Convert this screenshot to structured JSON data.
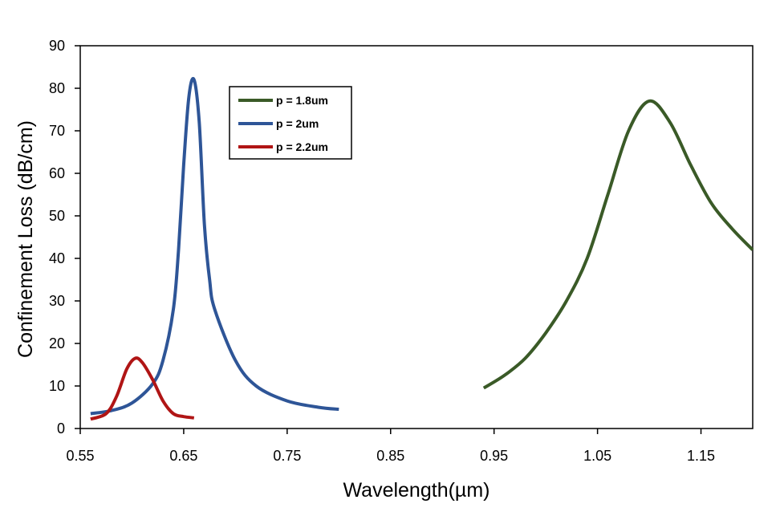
{
  "chart_data": {
    "type": "line",
    "title": "",
    "xlabel": "Wavelength(µm)",
    "ylabel": "Confinement  Loss (dB/cm)",
    "xlim": [
      0.55,
      1.2
    ],
    "ylim": [
      0,
      90
    ],
    "x_ticks": [
      "0.55",
      "0.65",
      "0.75",
      "0.85",
      "0.95",
      "1.05",
      "1.15"
    ],
    "y_ticks": [
      "0",
      "10",
      "20",
      "30",
      "40",
      "50",
      "60",
      "70",
      "80",
      "90"
    ],
    "grid": false,
    "legend_position": "top-left",
    "series": [
      {
        "name": "p = 1.8um",
        "color": "#3a5a27",
        "x": [
          0.94,
          0.96,
          0.98,
          1.0,
          1.02,
          1.04,
          1.06,
          1.08,
          1.1,
          1.12,
          1.14,
          1.16,
          1.18,
          1.2
        ],
        "y": [
          9.5,
          12.5,
          16.5,
          22.5,
          30.0,
          40.0,
          55.0,
          70.0,
          77.0,
          72.0,
          62.0,
          53.0,
          47.0,
          42.0
        ]
      },
      {
        "name": "p = 2um",
        "color": "#2e5597",
        "x": [
          0.56,
          0.58,
          0.6,
          0.62,
          0.63,
          0.64,
          0.645,
          0.65,
          0.655,
          0.66,
          0.665,
          0.67,
          0.675,
          0.68,
          0.7,
          0.72,
          0.75,
          0.78,
          0.8
        ],
        "y": [
          3.5,
          4.2,
          6.0,
          10.5,
          16.0,
          28.0,
          42.0,
          62.0,
          78.0,
          82.0,
          72.0,
          48.0,
          35.0,
          28.0,
          16.0,
          10.0,
          6.5,
          5.0,
          4.5
        ]
      },
      {
        "name": "p = 2.2um",
        "color": "#b01515",
        "x": [
          0.56,
          0.575,
          0.585,
          0.595,
          0.603,
          0.61,
          0.62,
          0.63,
          0.64,
          0.65,
          0.66
        ],
        "y": [
          2.2,
          3.5,
          7.5,
          14.0,
          16.5,
          15.5,
          11.5,
          6.5,
          3.5,
          2.8,
          2.5
        ]
      }
    ]
  }
}
